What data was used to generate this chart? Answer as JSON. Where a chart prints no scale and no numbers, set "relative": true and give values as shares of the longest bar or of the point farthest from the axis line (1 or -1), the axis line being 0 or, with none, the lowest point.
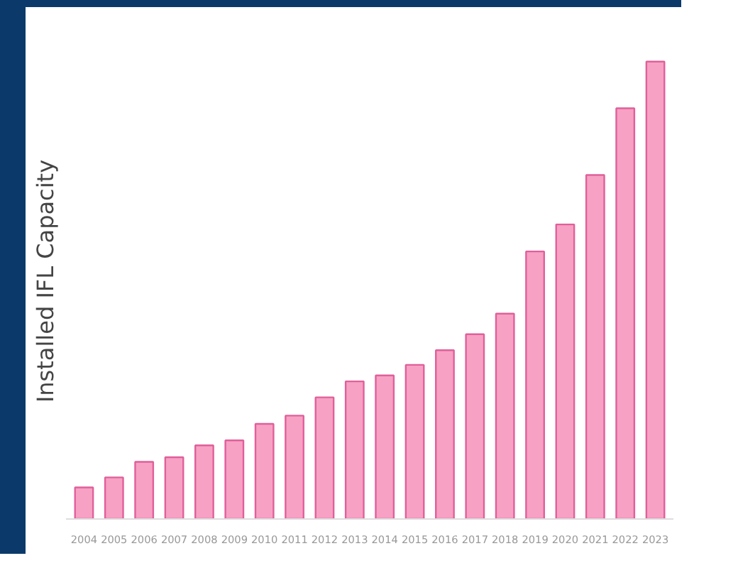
{
  "chart_data": {
    "type": "bar",
    "ylabel": "Installed IFL Capacity",
    "relative": true,
    "color": "#f7a1c4",
    "categories": [
      "2004",
      "2005",
      "2006",
      "2007",
      "2008",
      "2009",
      "2010",
      "2011",
      "2012",
      "2013",
      "2014",
      "2015",
      "2016",
      "2017",
      "2018",
      "2019",
      "2020",
      "2021",
      "2022",
      "2023"
    ],
    "values": [
      0.069,
      0.091,
      0.125,
      0.135,
      0.161,
      0.172,
      0.208,
      0.226,
      0.266,
      0.301,
      0.314,
      0.337,
      0.369,
      0.404,
      0.449,
      0.585,
      0.644,
      0.752,
      0.898,
      1
    ],
    "grid": false
  }
}
